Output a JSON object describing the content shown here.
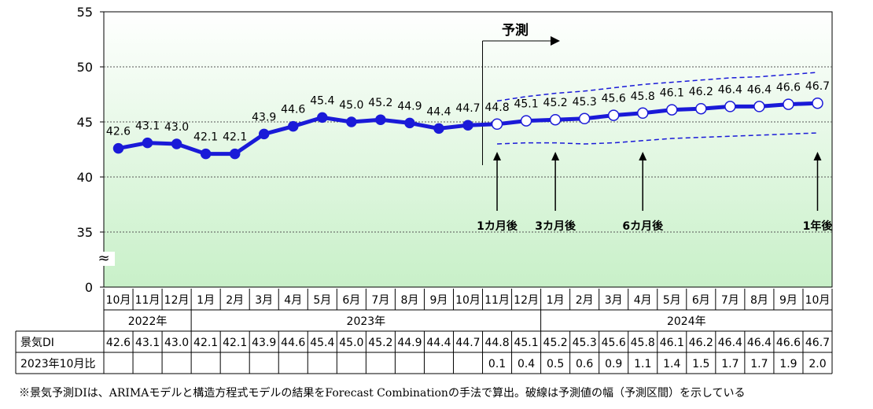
{
  "chart_data": {
    "type": "line",
    "ylim": [
      0,
      55
    ],
    "yticks": [
      "0",
      "35",
      "40",
      "45",
      "50",
      "55"
    ],
    "axis_break": "≈",
    "categories": [
      "10月",
      "11月",
      "12月",
      "1月",
      "2月",
      "3月",
      "4月",
      "5月",
      "6月",
      "7月",
      "8月",
      "9月",
      "10月",
      "11月",
      "12月",
      "1月",
      "2月",
      "3月",
      "4月",
      "5月",
      "6月",
      "7月",
      "8月",
      "9月",
      "10月"
    ],
    "years": [
      {
        "label": "2022年",
        "from": 0,
        "to": 2
      },
      {
        "label": "2023年",
        "from": 3,
        "to": 14
      },
      {
        "label": "2024年",
        "from": 15,
        "to": 24
      }
    ],
    "series": [
      {
        "values": [
          42.6,
          43.1,
          43.0,
          42.1,
          42.1,
          43.9,
          44.6,
          45.4,
          45.0,
          45.2,
          44.9,
          44.4,
          44.7,
          44.8,
          45.1,
          45.2,
          45.3,
          45.6,
          45.8,
          46.1,
          46.2,
          46.4,
          46.4,
          46.6,
          46.7
        ],
        "actual_count": 13
      },
      {
        "role": "upper-interval",
        "style": "dashed",
        "values": [
          null,
          null,
          null,
          null,
          null,
          null,
          null,
          null,
          null,
          null,
          null,
          null,
          null,
          46.9,
          47.3,
          47.6,
          47.8,
          48.1,
          48.4,
          48.6,
          48.8,
          49.0,
          49.1,
          49.3,
          49.5
        ]
      },
      {
        "role": "lower-interval",
        "style": "dashed",
        "values": [
          null,
          null,
          null,
          null,
          null,
          null,
          null,
          null,
          null,
          null,
          null,
          null,
          null,
          43.0,
          43.1,
          43.1,
          43.0,
          43.1,
          43.3,
          43.5,
          43.6,
          43.7,
          43.8,
          43.9,
          44.0
        ]
      }
    ],
    "data_labels": [
      "42.6",
      "43.1",
      "43.0",
      "42.1",
      "42.1",
      "43.9",
      "44.6",
      "45.4",
      "45.0",
      "45.2",
      "44.9",
      "44.4",
      "44.7",
      "44.8",
      "45.1",
      "45.2",
      "45.3",
      "45.6",
      "45.8",
      "46.1",
      "46.2",
      "46.4",
      "46.4",
      "46.6",
      "46.7"
    ],
    "forecast_label": "予測",
    "annotations": [
      {
        "label": "1カ月後",
        "index": 13
      },
      {
        "label": "3カ月後",
        "index": 15
      },
      {
        "label": "6カ月後",
        "index": 18
      },
      {
        "label": "1年後",
        "index": 24
      }
    ],
    "table": {
      "rows": [
        {
          "label": "景気DI",
          "cells": [
            "42.6",
            "43.1",
            "43.0",
            "42.1",
            "42.1",
            "43.9",
            "44.6",
            "45.4",
            "45.0",
            "45.2",
            "44.9",
            "44.4",
            "44.7",
            "44.8",
            "45.1",
            "45.2",
            "45.3",
            "45.6",
            "45.8",
            "46.1",
            "46.2",
            "46.4",
            "46.4",
            "46.6",
            "46.7"
          ]
        },
        {
          "label": "2023年10月比",
          "cells": [
            "",
            "",
            "",
            "",
            "",
            "",
            "",
            "",
            "",
            "",
            "",
            "",
            "",
            "0.1",
            "0.4",
            "0.5",
            "0.6",
            "0.9",
            "1.1",
            "1.4",
            "1.5",
            "1.7",
            "1.7",
            "1.9",
            "2.0"
          ]
        }
      ]
    },
    "colors": {
      "line": "#1a1ad8",
      "marker_fill": "#1a1ad8",
      "forecast_marker_fill": "#ffffff",
      "plot_bg_top": "#ffffff",
      "plot_bg_bottom": "#c8f0c8",
      "grid": "#555555"
    }
  },
  "footnote": "※景気予測DIは、ARIMAモデルと構造方程式モデルの結果をForecast Combinationの手法で算出。破線は予測値の幅（予測区間）を示している"
}
